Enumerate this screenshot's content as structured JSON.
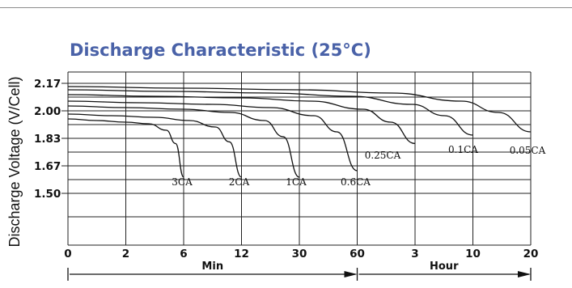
{
  "chart_data": {
    "type": "line",
    "title": "Discharge Characteristic  (25°C)",
    "ylabel": "Discharge Voltage (V/Cell)",
    "y_ticks": [
      "2.17",
      "2.00",
      "1.83",
      "1.67",
      "1.50"
    ],
    "x_ticks": [
      "0",
      "2",
      "6",
      "12",
      "30",
      "60",
      "3",
      "10",
      "20"
    ],
    "x_units": [
      "Min",
      "Hour"
    ],
    "grid": true,
    "series": [
      {
        "name": "3CA",
        "end_x_label": "6",
        "points": [
          [
            0,
            1.95
          ],
          [
            0.25,
            1.94
          ],
          [
            0.5,
            1.93
          ],
          [
            0.7,
            1.92
          ],
          [
            0.85,
            1.88
          ],
          [
            0.93,
            1.8
          ],
          [
            1.0,
            1.6
          ]
        ]
      },
      {
        "name": "2CA",
        "end_x_label": "12",
        "points": [
          [
            0,
            1.98
          ],
          [
            0.25,
            1.97
          ],
          [
            0.5,
            1.96
          ],
          [
            0.7,
            1.94
          ],
          [
            0.85,
            1.9
          ],
          [
            0.93,
            1.81
          ],
          [
            1.0,
            1.6
          ]
        ]
      },
      {
        "name": "1CA",
        "end_x_label": "30",
        "points": [
          [
            0,
            2.03
          ],
          [
            0.25,
            2.02
          ],
          [
            0.5,
            2.01
          ],
          [
            0.7,
            1.99
          ],
          [
            0.85,
            1.94
          ],
          [
            0.93,
            1.84
          ],
          [
            1.0,
            1.6
          ]
        ]
      },
      {
        "name": "0.6CA",
        "end_x_label": "60",
        "points": [
          [
            0,
            2.06
          ],
          [
            0.25,
            2.05
          ],
          [
            0.5,
            2.04
          ],
          [
            0.7,
            2.02
          ],
          [
            0.85,
            1.97
          ],
          [
            0.93,
            1.87
          ],
          [
            1.0,
            1.64
          ]
        ]
      },
      {
        "name": "0.25CA",
        "end_x_label": "3",
        "points": [
          [
            0,
            2.1
          ],
          [
            0.25,
            2.09
          ],
          [
            0.5,
            2.08
          ],
          [
            0.7,
            2.06
          ],
          [
            0.85,
            2.01
          ],
          [
            0.93,
            1.93
          ],
          [
            1.0,
            1.8
          ]
        ]
      },
      {
        "name": "0.1CA",
        "end_x_label": "10",
        "points": [
          [
            0,
            2.13
          ],
          [
            0.25,
            2.12
          ],
          [
            0.5,
            2.11
          ],
          [
            0.7,
            2.09
          ],
          [
            0.85,
            2.04
          ],
          [
            0.93,
            1.97
          ],
          [
            1.0,
            1.85
          ]
        ]
      },
      {
        "name": "0.05CA",
        "end_x_label": "20",
        "points": [
          [
            0,
            2.15
          ],
          [
            0.25,
            2.14
          ],
          [
            0.5,
            2.13
          ],
          [
            0.7,
            2.11
          ],
          [
            0.85,
            2.06
          ],
          [
            0.93,
            1.99
          ],
          [
            1.0,
            1.87
          ]
        ]
      }
    ]
  }
}
